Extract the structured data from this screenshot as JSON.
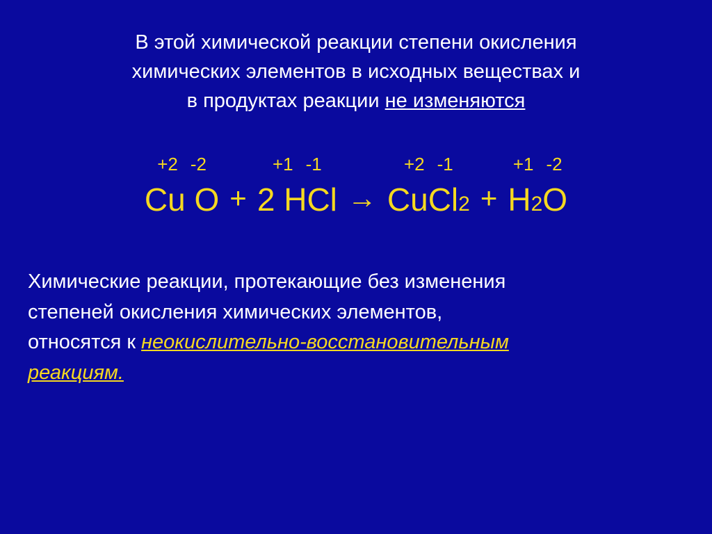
{
  "intro": {
    "line1": "В этой химической реакции степени окисления",
    "line2": "химических элементов в исходных веществах и",
    "line3_start": "в продуктах реакции ",
    "line3_underlined": "не изменяются"
  },
  "equation": {
    "reactant1": {
      "ox1": "+2",
      "ox2": "-2",
      "elem1": "Cu",
      "elem2": "O"
    },
    "plus": "+",
    "coef1": "2",
    "reactant2": {
      "ox1": "+1",
      "ox2": "-1",
      "elem1": "H",
      "elem2": "Cl"
    },
    "arrow": "→",
    "product1": {
      "ox1": "+2",
      "ox2": "-1",
      "elem1": "Cu",
      "elem2": "Cl",
      "sub": "2"
    },
    "product2": {
      "ox1": "+1",
      "ox2": "-2",
      "elem1": "H",
      "sub1": "2",
      "elem2": "O"
    }
  },
  "conclusion": {
    "line1": "Химические реакции, протекающие без изменения",
    "line2": "степеней окисления химических элементов,",
    "line3_start": "относятся к  ",
    "line3_italic": "неокислительно-восстановительным",
    "line4_italic": "реакциям."
  },
  "colors": {
    "background": "#0a0a9e",
    "text_white": "#ffffff",
    "text_yellow": "#f5d820"
  }
}
